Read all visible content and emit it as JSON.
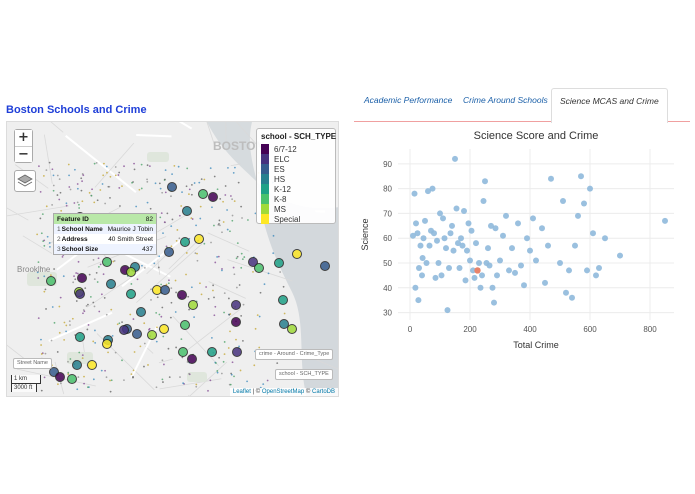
{
  "page": {
    "title": "Boston Schools and Crime"
  },
  "map": {
    "city_label": "BOSTON",
    "place_labels": [
      "Brookline"
    ],
    "zoom_in": "+",
    "zoom_out": "−",
    "legend": {
      "title": "school - SCH_TYPE",
      "items": [
        {
          "label": "6/7-12",
          "color": "#440154"
        },
        {
          "label": "ELC",
          "color": "#46327e"
        },
        {
          "label": "ES",
          "color": "#365c8d"
        },
        {
          "label": "HS",
          "color": "#277f8e"
        },
        {
          "label": "K-12",
          "color": "#1fa187"
        },
        {
          "label": "K-8",
          "color": "#4ac16d"
        },
        {
          "label": "MS",
          "color": "#a0da39"
        },
        {
          "label": "Special",
          "color": "#fde725"
        }
      ]
    },
    "tooltip": {
      "header_key": "Feature ID",
      "header_value": "82",
      "rows": [
        {
          "idx": "1",
          "key": "School Name",
          "value": "Maurice J Tobin"
        },
        {
          "idx": "2",
          "key": "Address",
          "value": "40 Smith Street"
        },
        {
          "idx": "3",
          "key": "School Size",
          "value": "437"
        }
      ]
    },
    "layer_chips": [
      "Street Name",
      "crime - Around - Crime_Type",
      "school - SCH_TYPE"
    ],
    "scale": {
      "km": "1 km",
      "ft": "3000 ft"
    },
    "attribution": {
      "leaflet": "Leaflet",
      "sep": " | © ",
      "osm": "OpenStreetMap",
      "sep2": " © ",
      "carto": "CartoDB"
    },
    "icons": {
      "layers": "layers-icon"
    }
  },
  "tabs": [
    {
      "label": "Academic Performance",
      "active": false
    },
    {
      "label": "Crime Around Schools",
      "active": false
    },
    {
      "label": "Science MCAS and Crime",
      "active": true
    }
  ],
  "chart_data": {
    "type": "scatter",
    "title": "Science Score and Crime",
    "xlabel": "Total Crime",
    "ylabel": "Science",
    "xlim": [
      -40,
      880
    ],
    "ylim": [
      27,
      96
    ],
    "xticks": [
      0,
      200,
      400,
      600,
      800
    ],
    "yticks": [
      30,
      40,
      50,
      60,
      70,
      80,
      90
    ],
    "grid": true,
    "point_color": "#8fb9dc",
    "highlight_color": "#e8836a",
    "points": [
      [
        15,
        78
      ],
      [
        20,
        66
      ],
      [
        25,
        62
      ],
      [
        30,
        48
      ],
      [
        35,
        57
      ],
      [
        40,
        45
      ],
      [
        45,
        60
      ],
      [
        50,
        67
      ],
      [
        55,
        50
      ],
      [
        60,
        79
      ],
      [
        65,
        57
      ],
      [
        70,
        63
      ],
      [
        75,
        80
      ],
      [
        80,
        62
      ],
      [
        85,
        44
      ],
      [
        90,
        59
      ],
      [
        95,
        50
      ],
      [
        100,
        70
      ],
      [
        105,
        45
      ],
      [
        110,
        68
      ],
      [
        115,
        60
      ],
      [
        120,
        56
      ],
      [
        125,
        31
      ],
      [
        130,
        48
      ],
      [
        135,
        62
      ],
      [
        140,
        65
      ],
      [
        145,
        55
      ],
      [
        150,
        92
      ],
      [
        155,
        72
      ],
      [
        160,
        58
      ],
      [
        165,
        48
      ],
      [
        170,
        60
      ],
      [
        175,
        57
      ],
      [
        180,
        71
      ],
      [
        185,
        43
      ],
      [
        190,
        55
      ],
      [
        195,
        66
      ],
      [
        200,
        51
      ],
      [
        205,
        63
      ],
      [
        210,
        47
      ],
      [
        215,
        44
      ],
      [
        220,
        58
      ],
      [
        230,
        50
      ],
      [
        235,
        40
      ],
      [
        240,
        45
      ],
      [
        245,
        75
      ],
      [
        250,
        83
      ],
      [
        255,
        50
      ],
      [
        260,
        56
      ],
      [
        265,
        49
      ],
      [
        270,
        65
      ],
      [
        275,
        40
      ],
      [
        280,
        34
      ],
      [
        285,
        64
      ],
      [
        290,
        45
      ],
      [
        300,
        51
      ],
      [
        310,
        61
      ],
      [
        320,
        69
      ],
      [
        330,
        47
      ],
      [
        340,
        56
      ],
      [
        350,
        46
      ],
      [
        360,
        66
      ],
      [
        370,
        49
      ],
      [
        380,
        41
      ],
      [
        390,
        60
      ],
      [
        400,
        55
      ],
      [
        410,
        68
      ],
      [
        420,
        51
      ],
      [
        440,
        64
      ],
      [
        450,
        42
      ],
      [
        460,
        57
      ],
      [
        470,
        84
      ],
      [
        500,
        50
      ],
      [
        510,
        75
      ],
      [
        520,
        38
      ],
      [
        530,
        47
      ],
      [
        540,
        36
      ],
      [
        550,
        57
      ],
      [
        560,
        69
      ],
      [
        570,
        85
      ],
      [
        580,
        74
      ],
      [
        590,
        47
      ],
      [
        600,
        80
      ],
      [
        610,
        62
      ],
      [
        620,
        45
      ],
      [
        630,
        48
      ],
      [
        650,
        60
      ],
      [
        700,
        53
      ],
      [
        850,
        67
      ],
      [
        18,
        40
      ],
      [
        10,
        61
      ],
      [
        28,
        35
      ],
      [
        42,
        52
      ]
    ],
    "highlight": [
      225,
      47
    ]
  }
}
